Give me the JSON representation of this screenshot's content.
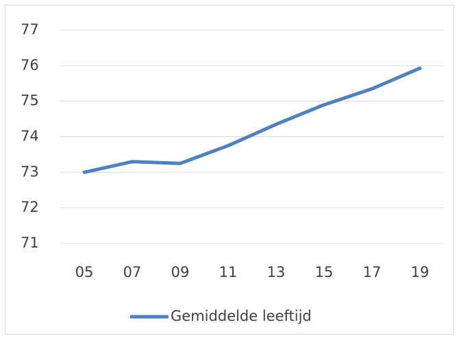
{
  "chart_data": {
    "type": "line",
    "categories": [
      "05",
      "07",
      "09",
      "11",
      "13",
      "15",
      "17",
      "19"
    ],
    "series": [
      {
        "name": "Gemiddelde leeftijd",
        "color": "#4f81bd",
        "values": [
          73.0,
          73.3,
          73.25,
          73.75,
          74.35,
          74.9,
          75.35,
          75.93
        ]
      }
    ],
    "ylim": [
      71,
      77
    ],
    "yticks": [
      71,
      72,
      73,
      74,
      75,
      76,
      77
    ],
    "grid": true,
    "legend": "bottom"
  }
}
